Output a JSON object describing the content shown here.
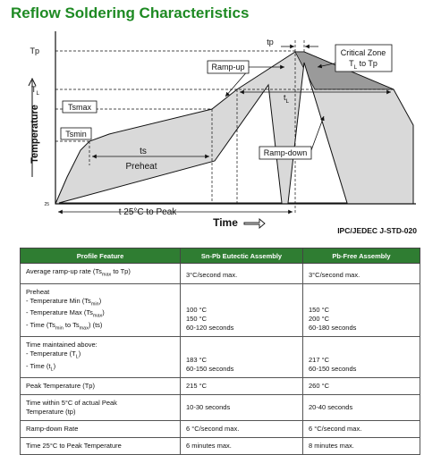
{
  "title": "Reflow Soldering Characteristics",
  "diagram": {
    "tp_level": "Tp",
    "tl_level": [
      "T",
      {
        "sub": "L"
      }
    ],
    "tsmax": "Tsmax",
    "tsmin": "Tsmin",
    "t25": "25",
    "temperature": "Temperature",
    "tp_duration": "tp",
    "critical_zone": [
      [
        "Critical Zone"
      ],
      [
        "T",
        {
          "sub": "L"
        },
        " to Tp"
      ]
    ],
    "ramp_up": "Ramp-up",
    "tl_duration": [
      "t",
      {
        "sub": "L"
      }
    ],
    "ts": "ts",
    "preheat": "Preheat",
    "ramp_down": "Ramp-down",
    "time_to_peak": "t 25°C to Peak",
    "time": "Time",
    "standard": "IPC/JEDEC J-STD-020"
  },
  "table": {
    "header": [
      "Profile Feature",
      "Sn-Pb Eutectic Assembly",
      "Pb-Free Assembly"
    ],
    "rows": [
      [
        [
          [
            "Average ramp-up rate (Ts",
            {
              "sub": "max"
            },
            " to Tp)"
          ]
        ],
        [
          [
            "3°C/second max."
          ]
        ],
        [
          [
            "3°C/second max."
          ]
        ]
      ],
      [
        [
          [
            "Preheat"
          ],
          [
            "- Temperature Min (Ts",
            {
              "sub": "min"
            },
            ")"
          ],
          [
            "- Temperature Max (Ts",
            {
              "sub": "max"
            },
            ")"
          ],
          [
            "- Time (Ts",
            {
              "sub": "min"
            },
            " to Ts",
            {
              "sub": "max"
            },
            ") (ts)"
          ]
        ],
        [
          [
            "100 °C"
          ],
          [
            "150 °C"
          ],
          [
            "60-120 seconds"
          ]
        ],
        [
          [
            "150 °C"
          ],
          [
            "200 °C"
          ],
          [
            "60-180 seconds"
          ]
        ]
      ],
      [
        [
          [
            "Time maintained above:"
          ],
          [
            "- Temperature (T",
            {
              "sub": "L"
            },
            ")"
          ],
          [
            "- Time (t",
            {
              "sub": "L"
            },
            ")"
          ]
        ],
        [
          [
            "183 °C"
          ],
          [
            "60-150 seconds"
          ]
        ],
        [
          [
            "217 °C"
          ],
          [
            "60-150 seconds"
          ]
        ]
      ],
      [
        [
          [
            "Peak Temperature (Tp)"
          ]
        ],
        [
          [
            "215 °C"
          ]
        ],
        [
          [
            "260 °C"
          ]
        ]
      ],
      [
        [
          [
            "Time within 5°C of actual Peak"
          ],
          [
            "Temperature (tp)"
          ]
        ],
        [
          [
            "10-30 seconds"
          ]
        ],
        [
          [
            "20-40 seconds"
          ]
        ]
      ],
      [
        [
          [
            "Ramp-down Rate"
          ]
        ],
        [
          [
            "6 °C/second max."
          ]
        ],
        [
          [
            "6 °C/second max."
          ]
        ]
      ],
      [
        [
          [
            "Time 25°C to Peak Temperature"
          ]
        ],
        [
          [
            "6 minutes max."
          ]
        ],
        [
          [
            "8 minutes max."
          ]
        ]
      ]
    ]
  }
}
